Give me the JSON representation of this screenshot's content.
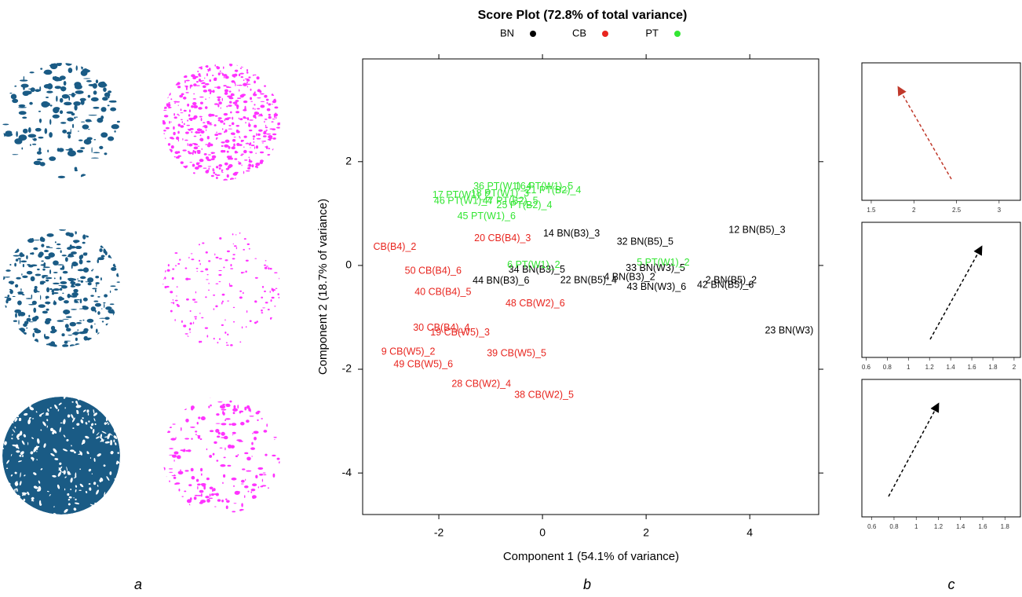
{
  "chart_data": {
    "type": "scatter",
    "title": "Score Plot (72.8% of total variance)",
    "xlabel": "Component 1 (54.1% of variance)",
    "ylabel": "Component 2 (18.7% of variance)",
    "xlim": [
      -3.47,
      5.33
    ],
    "ylim": [
      -4.8,
      3.98
    ],
    "xticks": [
      -2,
      0,
      2,
      4
    ],
    "yticks": [
      -4,
      -2,
      0,
      2
    ],
    "legend": "top",
    "series": [
      {
        "name": "BN",
        "color": "#000000",
        "labels": [
          "14 BN(B3)_3",
          "32 BN(B5)_5",
          "12 BN(B5)_3",
          "34 BN(B3)_5",
          "44 BN(B3)_6",
          "22 BN(B5)_4",
          "4 BN(B3)_2",
          "33 BN(W3)_5",
          "43 BN(W3)_6",
          "2 BN(B5)_2",
          "42 BN(B5)_6",
          "23 BN(W3)"
        ],
        "x": [
          0.56,
          1.98,
          4.14,
          -0.11,
          -0.8,
          0.89,
          1.68,
          2.18,
          2.2,
          3.64,
          3.53,
          4.76
        ],
        "y": [
          0.61,
          0.45,
          0.68,
          -0.09,
          -0.3,
          -0.29,
          -0.23,
          -0.06,
          -0.42,
          -0.29,
          -0.38,
          -1.26
        ]
      },
      {
        "name": "CB",
        "color": "#e8251f",
        "labels": [
          "CB(B4)_2",
          "20 CB(B4)_3",
          "50 CB(B4)_6",
          "40 CB(B4)_5",
          "48 CB(W2)_6",
          "30 CB(B4)_4",
          "19 CB(W5)_3",
          "9 CB(W5)_2",
          "49 CB(W5)_6",
          "39 CB(W5)_5",
          "28 CB(W2)_4",
          "38 CB(W2)_5"
        ],
        "x": [
          -2.85,
          -0.77,
          -2.11,
          -1.92,
          -0.14,
          -1.95,
          -1.59,
          -2.59,
          -2.3,
          -0.5,
          -1.18,
          0.03
        ],
        "y": [
          0.35,
          0.52,
          -0.11,
          -0.52,
          -0.74,
          -1.21,
          -1.3,
          -1.67,
          -1.91,
          -1.7,
          -2.29,
          -2.5
        ]
      },
      {
        "name": "PT",
        "color": "#33e633",
        "labels": [
          "36 PT(W1)_4",
          "16 PT(W1)_5",
          "21 PT(B2)_4",
          "17 PT(W1)_2",
          "18 PT(W1)_3",
          "46 PT(W1)_4",
          "47 PT(B2)_5",
          "25 PT(B2)_4",
          "45 PT(W1)_6",
          "6 PT(W1)_2",
          "5 PT(W1)_2"
        ],
        "x": [
          -0.77,
          0.03,
          0.21,
          -1.56,
          -0.82,
          -1.53,
          -0.62,
          -0.35,
          -1.08,
          -0.17,
          2.33
        ],
        "y": [
          1.52,
          1.52,
          1.44,
          1.35,
          1.38,
          1.24,
          1.24,
          1.15,
          0.94,
          0.0,
          0.05
        ]
      }
    ]
  },
  "panel_labels": [
    "a",
    "b",
    "c"
  ],
  "panel_c": [
    {
      "xlim": [
        1.39,
        3.25
      ],
      "xticks": [
        1.5,
        2.0,
        2.5,
        3.0
      ]
    },
    {
      "xlim": [
        0.56,
        2.06
      ],
      "xticks": [
        0.6,
        0.8,
        1.0,
        1.2,
        1.4,
        1.6,
        1.8,
        2.0
      ]
    },
    {
      "xlim": [
        0.51,
        1.94
      ],
      "xticks": [
        0.6,
        0.8,
        1.0,
        1.2,
        1.4,
        1.6,
        1.8
      ]
    }
  ]
}
